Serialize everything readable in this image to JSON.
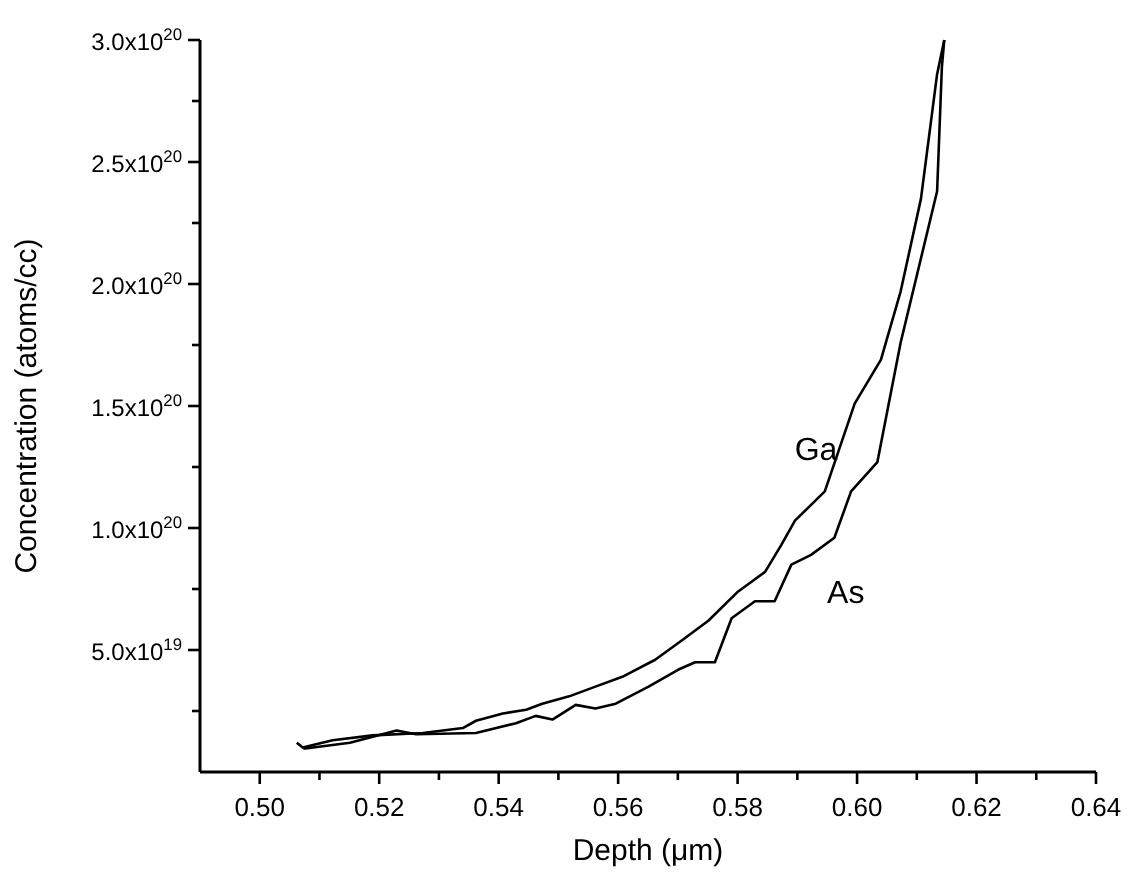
{
  "chart_data": {
    "type": "line",
    "xlabel": "Depth (μm)",
    "ylabel": "Concentration (atoms/cc)",
    "xlim": [
      0.49,
      0.64
    ],
    "ylim": [
      0,
      3e+20
    ],
    "xticks": [
      {
        "value": 0.5,
        "label": "0.50"
      },
      {
        "value": 0.51,
        "label": null
      },
      0.52,
      {
        "value": 0.53,
        "label": null
      },
      0.54,
      {
        "value": 0.55,
        "label": null
      },
      0.56,
      {
        "value": 0.57,
        "label": null
      },
      0.58,
      {
        "value": 0.59,
        "label": null
      },
      {
        "value": 0.6,
        "label": "0.60"
      },
      {
        "value": 0.61,
        "label": null
      },
      0.62,
      {
        "value": 0.63,
        "label": null
      },
      0.64
    ],
    "yticks": [
      {
        "value": 2.5e+19,
        "label": null
      },
      {
        "value": 5e+19,
        "label": "5.0x10$^{19}$"
      },
      {
        "value": 7.5e+19,
        "label": null
      },
      {
        "value": 1e+20,
        "label": "1.0x10$^{20}$"
      },
      {
        "value": 1.25e+20,
        "label": null
      },
      {
        "value": 1.5e+20,
        "label": "1.5x10$^{20}$"
      },
      {
        "value": 1.75e+20,
        "label": null
      },
      {
        "value": 2e+20,
        "label": "2.0x10$^{20}$"
      },
      {
        "value": 2.25e+20,
        "label": null
      },
      {
        "value": 2.5e+20,
        "label": "2.5x10$^{20}$"
      },
      {
        "value": 2.75e+20,
        "label": null
      },
      {
        "value": 3e+20,
        "label": "3.0x10$^{20}$"
      }
    ],
    "grid": false,
    "marker": "none",
    "line_style": "solid",
    "series": [
      {
        "name": "Ga",
        "color": "#000000",
        "x": [
          0.5062,
          0.5072,
          0.5122,
          0.5189,
          0.5273,
          0.534,
          0.5362,
          0.5407,
          0.5446,
          0.5473,
          0.5518,
          0.5562,
          0.5607,
          0.5662,
          0.5707,
          0.5751,
          0.5801,
          0.5846,
          0.5873,
          0.5896,
          0.5946,
          0.5996,
          0.604,
          0.6073,
          0.6107,
          0.6134,
          0.6146
        ],
        "values": [
          1.2e+19,
          1e+19,
          1.3e+19,
          1.5e+19,
          1.6e+19,
          1.8e+19,
          2.1e+19,
          2.4e+19,
          2.55e+19,
          2.8e+19,
          3.1e+19,
          3.5e+19,
          3.9e+19,
          4.6e+19,
          5.4e+19,
          6.2e+19,
          7.4e+19,
          8.2e+19,
          9.3e+19,
          1.03e+20,
          1.15e+20,
          1.51e+20,
          1.69e+20,
          1.97e+20,
          2.35e+20,
          2.86e+20,
          3e+20
        ]
      },
      {
        "name": "As",
        "color": "#000000",
        "x": [
          0.5073,
          0.5151,
          0.5229,
          0.5262,
          0.5362,
          0.5429,
          0.5462,
          0.549,
          0.5529,
          0.5562,
          0.5596,
          0.5651,
          0.5701,
          0.5729,
          0.5762,
          0.579,
          0.5829,
          0.5862,
          0.589,
          0.5923,
          0.5962,
          0.599,
          0.6034,
          0.6073,
          0.6134,
          0.6142,
          0.6146
        ],
        "values": [
          9.5e+18,
          1.2e+19,
          1.7e+19,
          1.55e+19,
          1.6e+19,
          2e+19,
          2.3e+19,
          2.15e+19,
          2.75e+19,
          2.6e+19,
          2.8e+19,
          3.5e+19,
          4.2e+19,
          4.5e+19,
          4.5e+19,
          6.3e+19,
          7e+19,
          7e+19,
          8.5e+19,
          8.9e+19,
          9.6e+19,
          1.15e+20,
          1.27e+20,
          1.76e+20,
          2.38e+20,
          2.89e+20,
          3e+20
        ]
      }
    ]
  }
}
